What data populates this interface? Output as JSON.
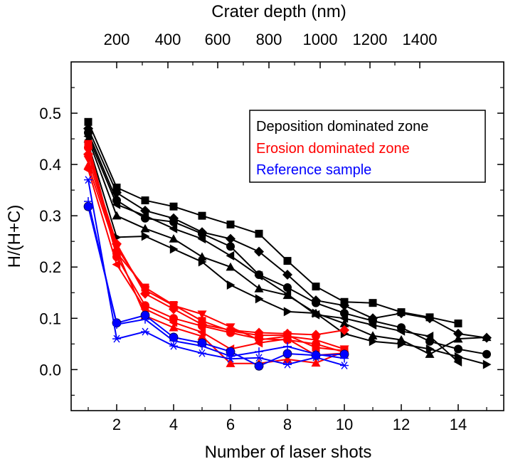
{
  "chart_data": {
    "type": "line",
    "xlabel": "Number of laser shots",
    "ylabel": "H/(H+C)",
    "top_axis_label": "Crater depth (nm)",
    "xlim": [
      0.4,
      15.6
    ],
    "ylim": [
      -0.08,
      0.6
    ],
    "x_ticks": [
      2,
      4,
      6,
      8,
      10,
      12,
      14
    ],
    "x_tick_labels": [
      "2",
      "4",
      "6",
      "8",
      "10",
      "12",
      "14"
    ],
    "y_ticks": [
      0.0,
      0.1,
      0.2,
      0.3,
      0.4,
      0.5
    ],
    "y_tick_labels": [
      "0.0",
      "0.1",
      "0.2",
      "0.3",
      "0.4",
      "0.5"
    ],
    "top_ticks": [
      {
        "at_shots": 2,
        "label": "200"
      },
      {
        "at_shots": 3.8,
        "label": "400"
      },
      {
        "at_shots": 5.55,
        "label": "600"
      },
      {
        "at_shots": 7.35,
        "label": "800"
      },
      {
        "at_shots": 9.15,
        "label": "1000"
      },
      {
        "at_shots": 10.9,
        "label": "1200"
      },
      {
        "at_shots": 12.65,
        "label": "1400"
      }
    ],
    "grid": false,
    "legend": {
      "placement": "top-right",
      "entries": [
        {
          "label": "Deposition dominated zone",
          "color": "#000000"
        },
        {
          "label": "Erosion dominated zone",
          "color": "#ff0000"
        },
        {
          "label": "Reference sample",
          "color": "#0000ff"
        }
      ]
    },
    "series": [
      {
        "color": "#000000",
        "marker": "square",
        "x": [
          1,
          2,
          3,
          4,
          5,
          6,
          7,
          8,
          9,
          10,
          11,
          12,
          13,
          14
        ],
        "y": [
          0.483,
          0.355,
          0.33,
          0.318,
          0.3,
          0.283,
          0.265,
          0.212,
          0.162,
          0.132,
          0.13,
          0.112,
          0.102,
          0.09
        ]
      },
      {
        "color": "#000000",
        "marker": "diamond",
        "x": [
          1,
          2,
          3,
          4,
          5,
          6,
          7,
          8,
          9,
          10,
          11,
          12,
          13,
          14,
          15
        ],
        "y": [
          0.47,
          0.345,
          0.31,
          0.295,
          0.268,
          0.255,
          0.23,
          0.185,
          0.135,
          0.125,
          0.1,
          0.11,
          0.1,
          0.07,
          0.062
        ]
      },
      {
        "color": "#000000",
        "marker": "circle",
        "x": [
          1,
          2,
          3,
          4,
          5,
          6,
          7,
          8,
          9,
          10,
          11,
          12,
          13,
          14,
          15
        ],
        "y": [
          0.462,
          0.33,
          0.295,
          0.288,
          0.265,
          0.24,
          0.185,
          0.16,
          0.13,
          0.11,
          0.095,
          0.082,
          0.055,
          0.04,
          0.03
        ]
      },
      {
        "color": "#000000",
        "marker": "triangle-left",
        "x": [
          1,
          2,
          3,
          4,
          5,
          6,
          7,
          8,
          9,
          10,
          11,
          12,
          13,
          14
        ],
        "y": [
          0.455,
          0.322,
          0.3,
          0.275,
          0.255,
          0.222,
          0.183,
          0.147,
          0.107,
          0.1,
          0.087,
          0.075,
          0.065,
          0.015
        ]
      },
      {
        "color": "#000000",
        "marker": "triangle-up",
        "x": [
          1,
          2,
          3,
          4,
          5,
          6,
          7,
          8,
          9,
          10,
          11,
          12,
          13,
          14,
          15
        ],
        "y": [
          0.45,
          0.3,
          0.275,
          0.255,
          0.22,
          0.2,
          0.158,
          0.145,
          0.11,
          0.09,
          0.066,
          0.058,
          0.03,
          0.06,
          0.063
        ]
      },
      {
        "color": "#000000",
        "marker": "triangle-right",
        "x": [
          1,
          2,
          3,
          4,
          5,
          6,
          7,
          8,
          9,
          10,
          11,
          12,
          13,
          14,
          15
        ],
        "y": [
          0.44,
          0.258,
          0.26,
          0.235,
          0.21,
          0.165,
          0.138,
          0.113,
          0.11,
          0.07,
          0.055,
          0.05,
          0.04,
          0.025,
          0.01
        ]
      },
      {
        "color": "#ff0000",
        "marker": "diamond",
        "x": [
          1,
          2,
          3,
          4,
          5,
          6,
          7,
          8,
          9,
          10
        ],
        "y": [
          0.42,
          0.245,
          0.148,
          0.118,
          0.088,
          0.077,
          0.072,
          0.07,
          0.068,
          0.077
        ]
      },
      {
        "color": "#ff0000",
        "marker": "triangle-down",
        "x": [
          1,
          2,
          3,
          4,
          5,
          6,
          7,
          8,
          9,
          10
        ],
        "y": [
          0.41,
          0.238,
          0.155,
          0.125,
          0.108,
          0.083,
          0.058,
          0.065,
          0.058,
          0.04
        ]
      },
      {
        "color": "#ff0000",
        "marker": "square",
        "x": [
          1,
          2,
          3,
          4,
          5,
          6,
          7,
          8,
          9,
          10
        ],
        "y": [
          0.44,
          0.228,
          0.16,
          0.126,
          0.095,
          0.075,
          0.067,
          0.067,
          0.043,
          0.037
        ]
      },
      {
        "color": "#ff0000",
        "marker": "circle",
        "x": [
          1,
          2,
          3,
          4,
          5,
          6,
          7,
          8,
          9,
          10
        ],
        "y": [
          0.433,
          0.22,
          0.125,
          0.1,
          0.085,
          0.072,
          0.06,
          0.058,
          0.05,
          0.034
        ]
      },
      {
        "color": "#ff0000",
        "marker": "triangle-left",
        "x": [
          1,
          2,
          3,
          4,
          5,
          6,
          7,
          8,
          9,
          10
        ],
        "y": [
          0.39,
          0.205,
          0.118,
          0.092,
          0.073,
          0.04,
          0.052,
          0.06,
          0.028,
          0.032
        ]
      },
      {
        "color": "#ff0000",
        "marker": "triangle-up",
        "x": [
          1,
          2,
          3,
          4,
          5,
          6,
          7,
          8,
          9,
          10
        ],
        "y": [
          0.398,
          0.232,
          0.105,
          0.082,
          0.065,
          0.012,
          0.012,
          0.02,
          0.013,
          0.035
        ]
      },
      {
        "color": "#0000ff",
        "marker": "ball",
        "x": [
          1,
          2,
          3,
          4,
          5,
          6,
          7,
          8,
          9,
          10
        ],
        "y": [
          0.318,
          0.091,
          0.106,
          0.063,
          0.052,
          0.035,
          0.007,
          0.031,
          0.028,
          0.03
        ]
      },
      {
        "color": "#0000ff",
        "marker": "plus",
        "x": [
          1,
          2,
          3,
          4,
          5,
          6,
          7,
          8,
          9,
          10
        ],
        "y": [
          0.328,
          0.088,
          0.098,
          0.056,
          0.046,
          0.026,
          0.035,
          0.045,
          0.03,
          0.022
        ]
      },
      {
        "color": "#0000ff",
        "marker": "asterisk",
        "x": [
          1,
          2,
          3,
          4,
          5,
          6,
          7,
          8,
          9,
          10
        ],
        "y": [
          0.37,
          0.06,
          0.074,
          0.046,
          0.032,
          0.021,
          0.023,
          0.01,
          0.024,
          0.008
        ]
      }
    ]
  }
}
